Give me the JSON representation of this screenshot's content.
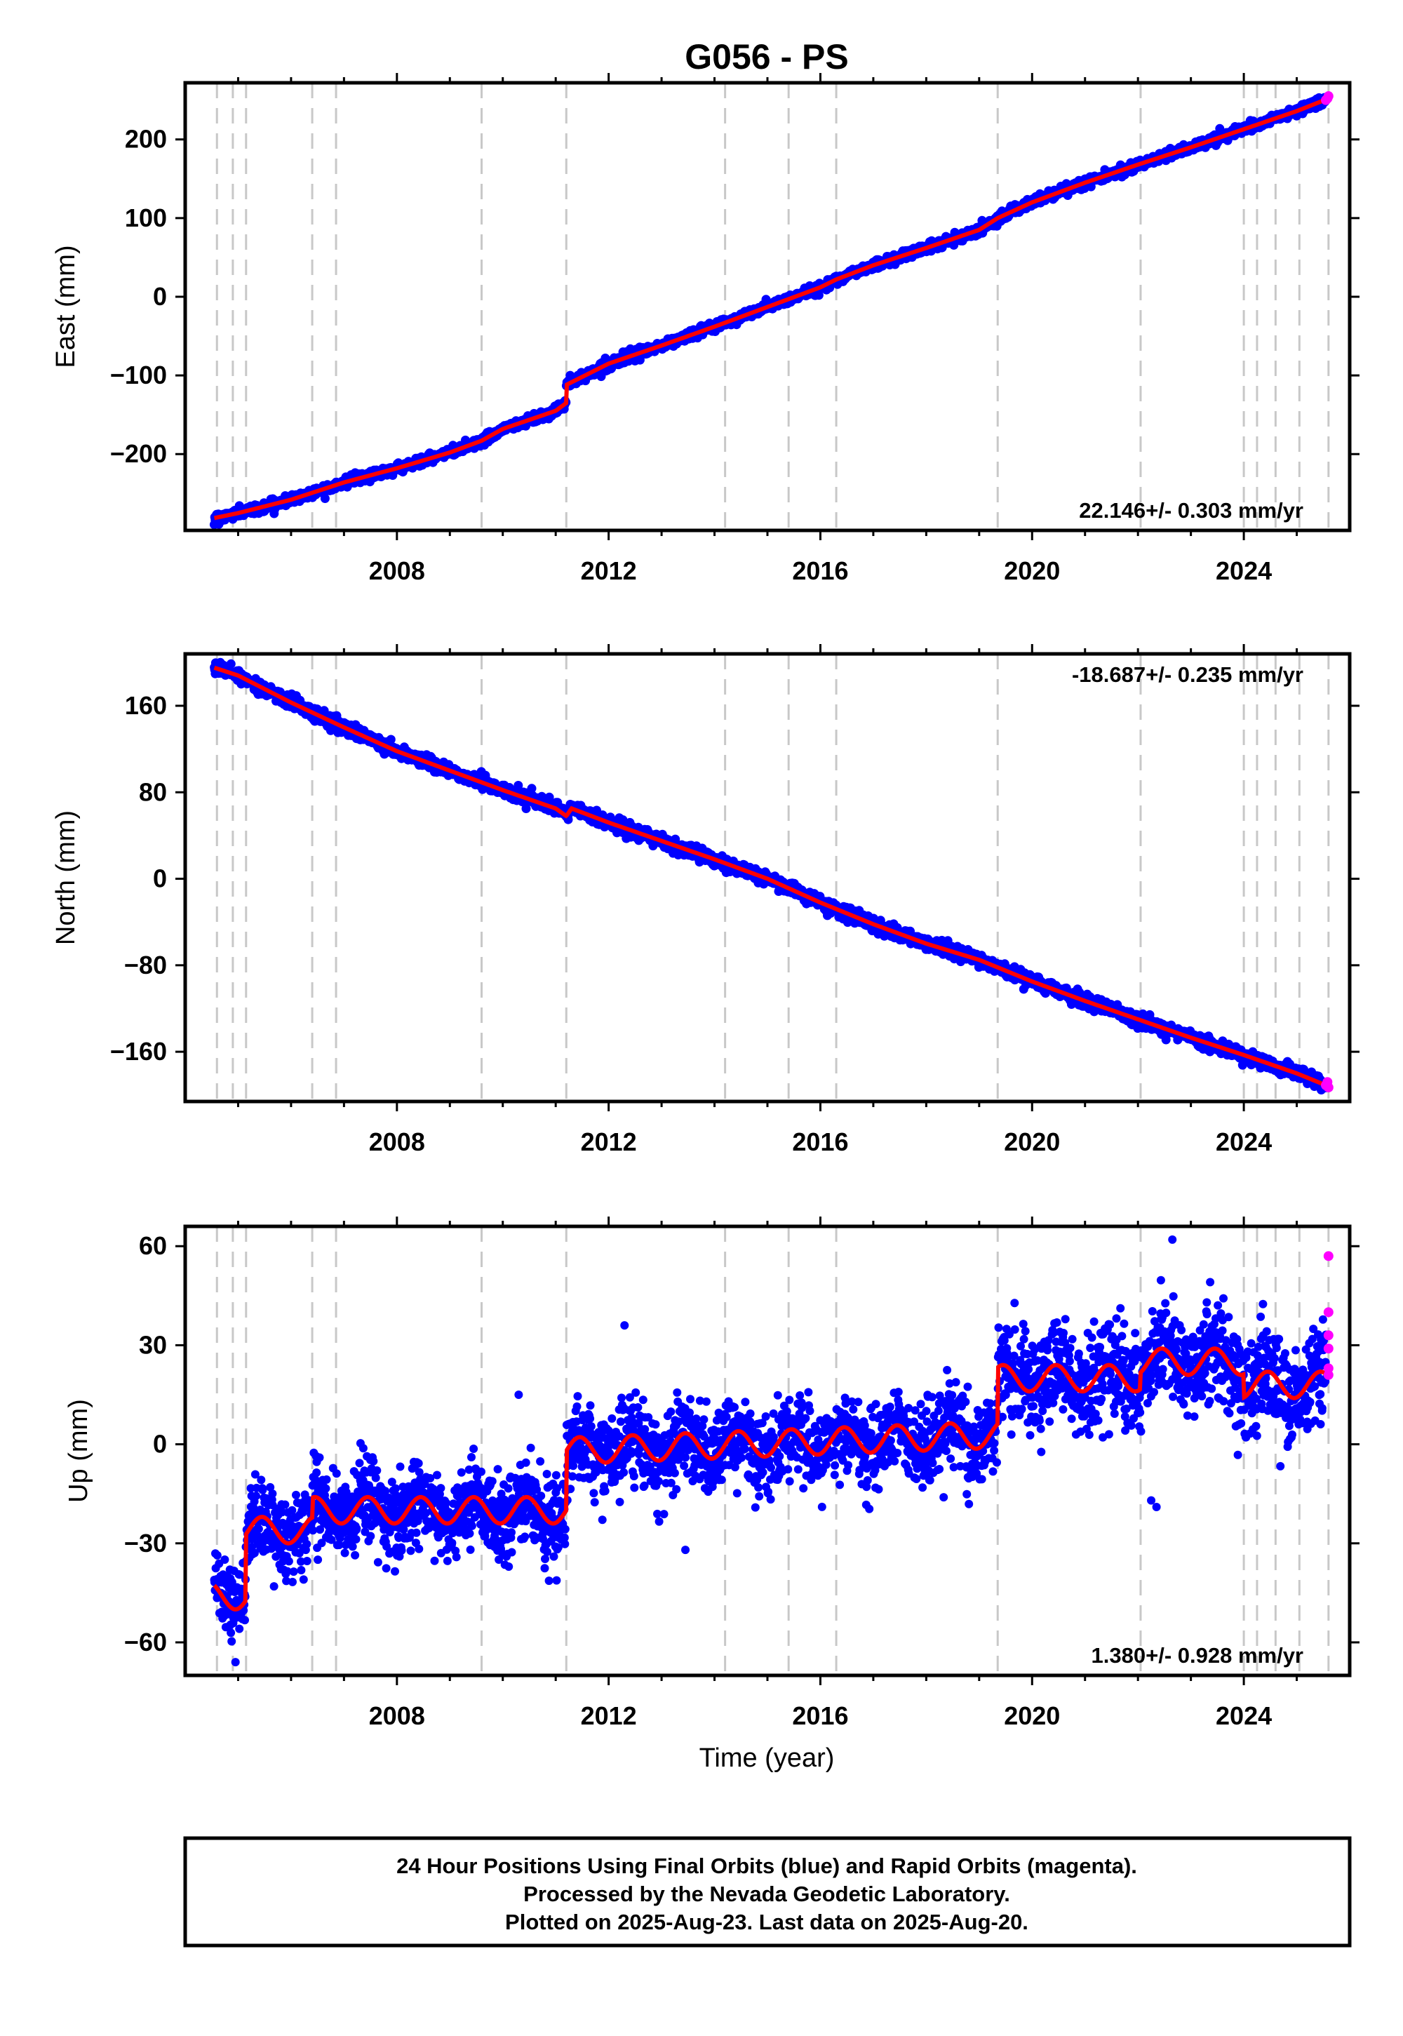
{
  "title": "G056 - PS",
  "footer": {
    "line1": "24 Hour Positions Using Final Orbits (blue) and Rapid Orbits (magenta).",
    "line2": "Processed by the Nevada Geodetic Laboratory.",
    "line3": "Plotted on 2025-Aug-23. Last data on 2025-Aug-20."
  },
  "colors": {
    "final": "#0000ff",
    "rapid": "#ff00ff",
    "model": "#ff0000",
    "steps": "#c8c8c8"
  },
  "chart_data": [
    {
      "type": "scatter",
      "ylabel": "East (mm)",
      "xlabel": "",
      "xticks": [
        "2008",
        "2012",
        "2016",
        "2020",
        "2024"
      ],
      "yticks": [
        "200",
        "100",
        "0",
        "−100",
        "−200"
      ],
      "xlim": [
        2004.0,
        2026.0
      ],
      "ylim": [
        -297,
        272
      ],
      "rate_label": "22.146+/- 0.303 mm/yr",
      "rate_position": "bottom-right",
      "step_epochs": [
        2004.6,
        2004.9,
        2005.15,
        2006.4,
        2006.85,
        2009.6,
        2011.2,
        2014.2,
        2015.4,
        2016.3,
        2019.35,
        2022.05,
        2024.0,
        2024.25,
        2024.6,
        2025.05,
        2025.6
      ],
      "model": [
        [
          2004.5,
          -282
        ],
        [
          2005.0,
          -275
        ],
        [
          2006.0,
          -258
        ],
        [
          2007.0,
          -236
        ],
        [
          2008.0,
          -218
        ],
        [
          2009.0,
          -198
        ],
        [
          2009.6,
          -183
        ],
        [
          2010.0,
          -168
        ],
        [
          2011.0,
          -145
        ],
        [
          2011.2,
          -135
        ],
        [
          2011.2,
          -112
        ],
        [
          2012.0,
          -85
        ],
        [
          2013.0,
          -62
        ],
        [
          2014.0,
          -38
        ],
        [
          2015.0,
          -13
        ],
        [
          2016.0,
          12
        ],
        [
          2016.3,
          22
        ],
        [
          2017.0,
          40
        ],
        [
          2018.0,
          62
        ],
        [
          2019.0,
          85
        ],
        [
          2019.35,
          100
        ],
        [
          2020.0,
          120
        ],
        [
          2021.0,
          145
        ],
        [
          2022.0,
          168
        ],
        [
          2023.0,
          190
        ],
        [
          2024.0,
          213
        ],
        [
          2025.0,
          236
        ],
        [
          2025.6,
          252
        ]
      ],
      "rapid_points": [
        [
          2025.55,
          250
        ],
        [
          2025.58,
          252
        ],
        [
          2025.6,
          255
        ]
      ],
      "final_noise_mm": 3
    },
    {
      "type": "scatter",
      "ylabel": "North (mm)",
      "xlabel": "",
      "xticks": [
        "2008",
        "2012",
        "2016",
        "2020",
        "2024"
      ],
      "yticks": [
        "160",
        "80",
        "0",
        "−80",
        "−160"
      ],
      "xlim": [
        2004.0,
        2026.0
      ],
      "ylim": [
        -206,
        208
      ],
      "rate_label": "-18.687+/- 0.235 mm/yr",
      "rate_position": "top-right",
      "step_epochs": [
        2004.6,
        2004.9,
        2005.15,
        2006.4,
        2006.85,
        2009.6,
        2011.2,
        2014.2,
        2015.4,
        2016.3,
        2019.35,
        2022.05,
        2024.0,
        2024.25,
        2024.6,
        2025.05,
        2025.6
      ],
      "model": [
        [
          2004.5,
          196
        ],
        [
          2005.0,
          188
        ],
        [
          2006.0,
          163
        ],
        [
          2007.0,
          140
        ],
        [
          2008.0,
          118
        ],
        [
          2009.0,
          100
        ],
        [
          2010.0,
          82
        ],
        [
          2011.0,
          65
        ],
        [
          2011.2,
          58
        ],
        [
          2011.3,
          65
        ],
        [
          2012.0,
          52
        ],
        [
          2013.0,
          35
        ],
        [
          2014.0,
          18
        ],
        [
          2015.0,
          0
        ],
        [
          2016.0,
          -22
        ],
        [
          2017.0,
          -42
        ],
        [
          2018.0,
          -60
        ],
        [
          2019.0,
          -75
        ],
        [
          2020.0,
          -95
        ],
        [
          2021.0,
          -113
        ],
        [
          2022.0,
          -130
        ],
        [
          2023.0,
          -147
        ],
        [
          2024.0,
          -163
        ],
        [
          2025.0,
          -180
        ],
        [
          2025.6,
          -192
        ]
      ],
      "rapid_points": [
        [
          2025.55,
          -191
        ],
        [
          2025.58,
          -188
        ],
        [
          2025.6,
          -193
        ]
      ],
      "final_noise_mm": 3
    },
    {
      "type": "scatter",
      "ylabel": "Up (mm)",
      "xlabel": "Time (year)",
      "xticks": [
        "2008",
        "2012",
        "2016",
        "2020",
        "2024"
      ],
      "yticks": [
        "60",
        "30",
        "0",
        "−30",
        "−60"
      ],
      "xlim": [
        2004.0,
        2026.0
      ],
      "ylim": [
        -70,
        66
      ],
      "rate_label": "1.380+/- 0.928 mm/yr",
      "rate_position": "bottom-right",
      "step_epochs": [
        2004.6,
        2004.9,
        2005.15,
        2006.4,
        2006.85,
        2009.6,
        2011.2,
        2014.2,
        2015.4,
        2016.3,
        2019.35,
        2022.05,
        2024.0,
        2024.25,
        2024.6,
        2025.05,
        2025.6
      ],
      "trend_segments": [
        {
          "from": 2004.5,
          "to": 2005.15,
          "base": -46
        },
        {
          "from": 2005.15,
          "to": 2006.4,
          "base": -26
        },
        {
          "from": 2006.4,
          "to": 2011.2,
          "base": -20
        },
        {
          "from": 2011.2,
          "to": 2019.35,
          "base": -2,
          "slope": 0.6
        },
        {
          "from": 2019.35,
          "to": 2022.05,
          "base": 20
        },
        {
          "from": 2022.05,
          "to": 2024.0,
          "base": 25
        },
        {
          "from": 2024.0,
          "to": 2025.6,
          "base": 18
        }
      ],
      "seasonal_amplitude_mm": 4,
      "final_noise_mm": 6,
      "rapid_points": [
        [
          2025.6,
          57
        ],
        [
          2025.6,
          40
        ],
        [
          2025.6,
          33
        ],
        [
          2025.6,
          29
        ],
        [
          2025.6,
          23
        ],
        [
          2025.6,
          21
        ]
      ],
      "outliers": [
        [
          2022.65,
          62
        ],
        [
          2022.35,
          -19
        ],
        [
          2022.25,
          -17
        ],
        [
          2013.45,
          -32
        ],
        [
          2012.3,
          36
        ],
        [
          2010.3,
          15
        ],
        [
          2004.95,
          -66
        ]
      ]
    }
  ]
}
